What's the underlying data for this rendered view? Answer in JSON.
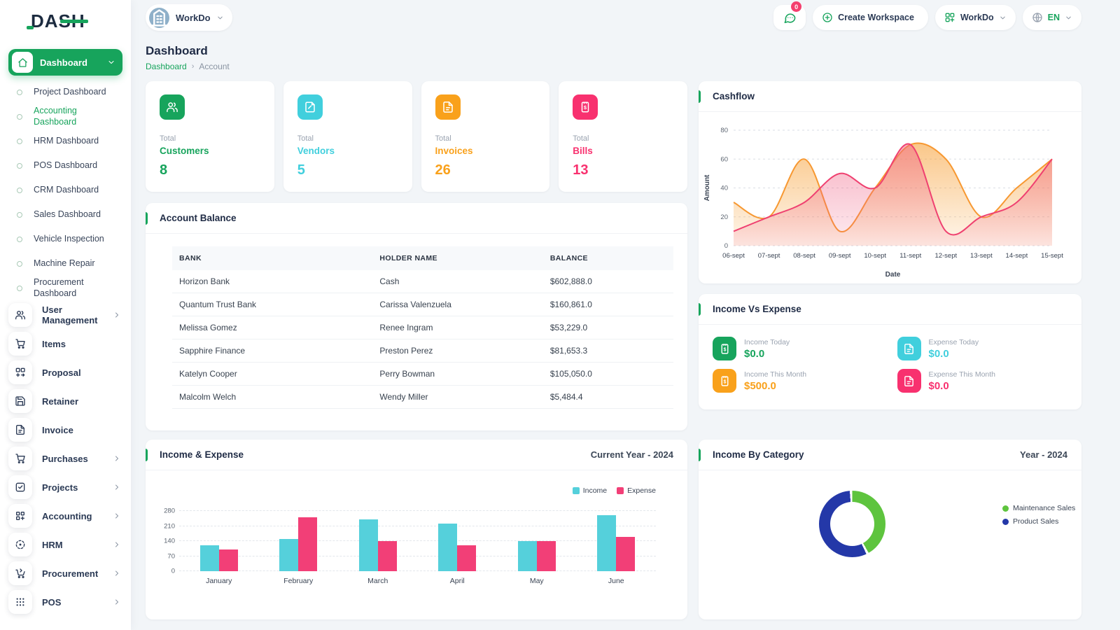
{
  "brand": {
    "logo_text": "DASH"
  },
  "topbar": {
    "workspace_label": "WorkDo",
    "messages_badge": "0",
    "create_workspace_label": "Create Workspace",
    "app_switcher_label": "WorkDo",
    "language": "EN"
  },
  "sidebar": {
    "items": [
      {
        "type": "parent",
        "label": "Dashboard",
        "icon": "home",
        "active": true
      },
      {
        "type": "sub",
        "label": "Project Dashboard",
        "active": false
      },
      {
        "type": "sub",
        "label": "Accounting Dashboard",
        "active": true
      },
      {
        "type": "sub",
        "label": "HRM Dashboard",
        "active": false
      },
      {
        "type": "sub",
        "label": "POS Dashboard",
        "active": false
      },
      {
        "type": "sub",
        "label": "CRM Dashboard",
        "active": false
      },
      {
        "type": "sub",
        "label": "Sales Dashboard",
        "active": false
      },
      {
        "type": "sub",
        "label": "Vehicle Inspection",
        "active": false
      },
      {
        "type": "sub",
        "label": "Machine Repair",
        "active": false
      },
      {
        "type": "sub",
        "label": "Procurement Dashboard",
        "active": false
      },
      {
        "type": "item",
        "label": "User Management",
        "icon": "users",
        "chevron": true
      },
      {
        "type": "item",
        "label": "Items",
        "icon": "cart",
        "chevron": false
      },
      {
        "type": "item",
        "label": "Proposal",
        "icon": "proposal",
        "chevron": false
      },
      {
        "type": "item",
        "label": "Retainer",
        "icon": "retainer",
        "chevron": false
      },
      {
        "type": "item",
        "label": "Invoice",
        "icon": "invoice",
        "chevron": false
      },
      {
        "type": "item",
        "label": "Purchases",
        "icon": "cart",
        "chevron": true
      },
      {
        "type": "item",
        "label": "Projects",
        "icon": "projects",
        "chevron": true
      },
      {
        "type": "item",
        "label": "Accounting",
        "icon": "accounting",
        "chevron": true
      },
      {
        "type": "item",
        "label": "HRM",
        "icon": "hrm",
        "chevron": true
      },
      {
        "type": "item",
        "label": "Procurement",
        "icon": "procurement",
        "chevron": true
      },
      {
        "type": "item",
        "label": "POS",
        "icon": "pos",
        "chevron": true
      }
    ]
  },
  "page": {
    "title": "Dashboard",
    "breadcrumb_link": "Dashboard",
    "breadcrumb_current": "Account"
  },
  "stat_cards": [
    {
      "prefix": "Total",
      "name": "Customers",
      "value": "8",
      "color": "#17a45c",
      "icon": "users"
    },
    {
      "prefix": "Total",
      "name": "Vendors",
      "value": "5",
      "color": "#41cfdd",
      "icon": "note"
    },
    {
      "prefix": "Total",
      "name": "Invoices",
      "value": "26",
      "color": "#f9a11b",
      "icon": "invoice"
    },
    {
      "prefix": "Total",
      "name": "Bills",
      "value": "13",
      "color": "#f8316f",
      "icon": "receipt"
    }
  ],
  "account_balance": {
    "title": "Account Balance",
    "columns": [
      "BANK",
      "HOLDER NAME",
      "BALANCE"
    ],
    "rows": [
      [
        "Horizon Bank",
        "Cash",
        "$602,888.0"
      ],
      [
        "Quantum Trust Bank",
        "Carissa Valenzuela",
        "$160,861.0"
      ],
      [
        "Melissa Gomez",
        "Renee Ingram",
        "$53,229.0"
      ],
      [
        "Sapphire Finance",
        "Preston Perez",
        "$81,653.3"
      ],
      [
        "Katelyn Cooper",
        "Perry Bowman",
        "$105,050.0"
      ],
      [
        "Malcolm Welch",
        "Wendy Miller",
        "$5,484.4"
      ]
    ]
  },
  "income_vs_expense": {
    "title": "Income Vs Expense",
    "items": [
      {
        "label": "Income Today",
        "value": "$0.0",
        "color": "#17a45c",
        "icon": "receipt"
      },
      {
        "label": "Expense Today",
        "value": "$0.0",
        "color": "#41cfdd",
        "icon": "invoice"
      },
      {
        "label": "Income This Month",
        "value": "$500.0",
        "color": "#f9a11b",
        "icon": "receipt"
      },
      {
        "label": "Expense This Month",
        "value": "$0.0",
        "color": "#f8316f",
        "icon": "invoice"
      }
    ]
  },
  "chart_data": [
    {
      "id": "cashflow",
      "type": "area",
      "title": "Cashflow",
      "xlabel": "Date",
      "ylabel": "Amount",
      "ylim": [
        0,
        80
      ],
      "yticks": [
        0,
        20,
        40,
        60,
        80
      ],
      "grid": "dashed",
      "categories": [
        "06-sept",
        "07-sept",
        "08-sept",
        "09-sept",
        "10-sept",
        "11-sept",
        "12-sept",
        "13-sept",
        "14-sept",
        "15-sept"
      ],
      "series": [
        {
          "color": "#f79831",
          "values": [
            30,
            20,
            60,
            10,
            40,
            70,
            60,
            20,
            40,
            60
          ]
        },
        {
          "color": "#ef4070",
          "values": [
            10,
            20,
            30,
            50,
            40,
            70,
            10,
            20,
            30,
            60
          ]
        }
      ]
    },
    {
      "id": "income_expense",
      "type": "bar",
      "title": "Income & Expense",
      "period_label": "Current Year - 2024",
      "categories": [
        "January",
        "February",
        "March",
        "April",
        "May",
        "June"
      ],
      "yticks": [
        0,
        70,
        140,
        210,
        280
      ],
      "ylim": [
        0,
        280
      ],
      "legend_position": "top-right",
      "series": [
        {
          "name": "Income",
          "color": "#55d0db",
          "values": [
            120,
            150,
            240,
            220,
            140,
            260
          ]
        },
        {
          "name": "Expense",
          "color": "#f23f77",
          "values": [
            100,
            250,
            140,
            120,
            140,
            160
          ]
        }
      ]
    },
    {
      "id": "income_by_category",
      "type": "donut",
      "title": "Income By Category",
      "period_label": "Year - 2024",
      "slices": [
        {
          "name": "Maintenance Sales",
          "color": "#5ec43e",
          "percent": 43
        },
        {
          "name": "Product Sales",
          "color": "#2438a8",
          "percent": 57
        }
      ]
    }
  ]
}
